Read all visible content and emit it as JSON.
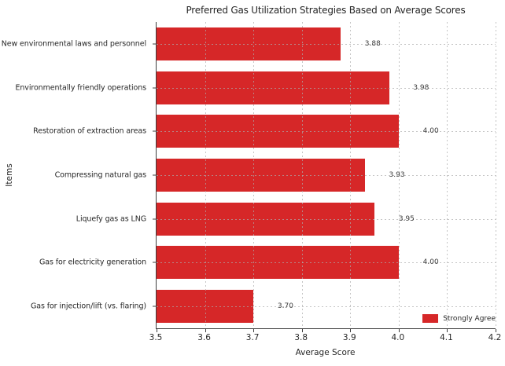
{
  "chart_data": {
    "type": "bar",
    "orientation": "horizontal",
    "title": "Preferred Gas Utilization Strategies Based on Average Scores",
    "xlabel": "Average Score",
    "ylabel": "Items",
    "categories": [
      "New environmental laws and personnel",
      "Environmentally friendly operations",
      "Restoration of extraction areas",
      "Compressing natural gas",
      "Liquefy gas as LNG",
      "Gas for electricity generation",
      "Gas for injection/lift (vs. flaring)"
    ],
    "values": [
      3.88,
      3.98,
      4.0,
      3.93,
      3.95,
      4.0,
      3.7
    ],
    "value_labels": [
      "3.88",
      "3.98",
      "4.00",
      "3.93",
      "3.95",
      "4.00",
      "3.70"
    ],
    "xlim": [
      3.5,
      4.2
    ],
    "xticks": [
      "3.5",
      "3.6",
      "3.7",
      "3.8",
      "3.9",
      "4.0",
      "4.1",
      "4.2"
    ],
    "grid": "dashed, drawn over bars",
    "bar_color": "#d62728",
    "legend": {
      "label": "Strongly Agree",
      "color": "#d62728",
      "position": "lower right"
    }
  }
}
